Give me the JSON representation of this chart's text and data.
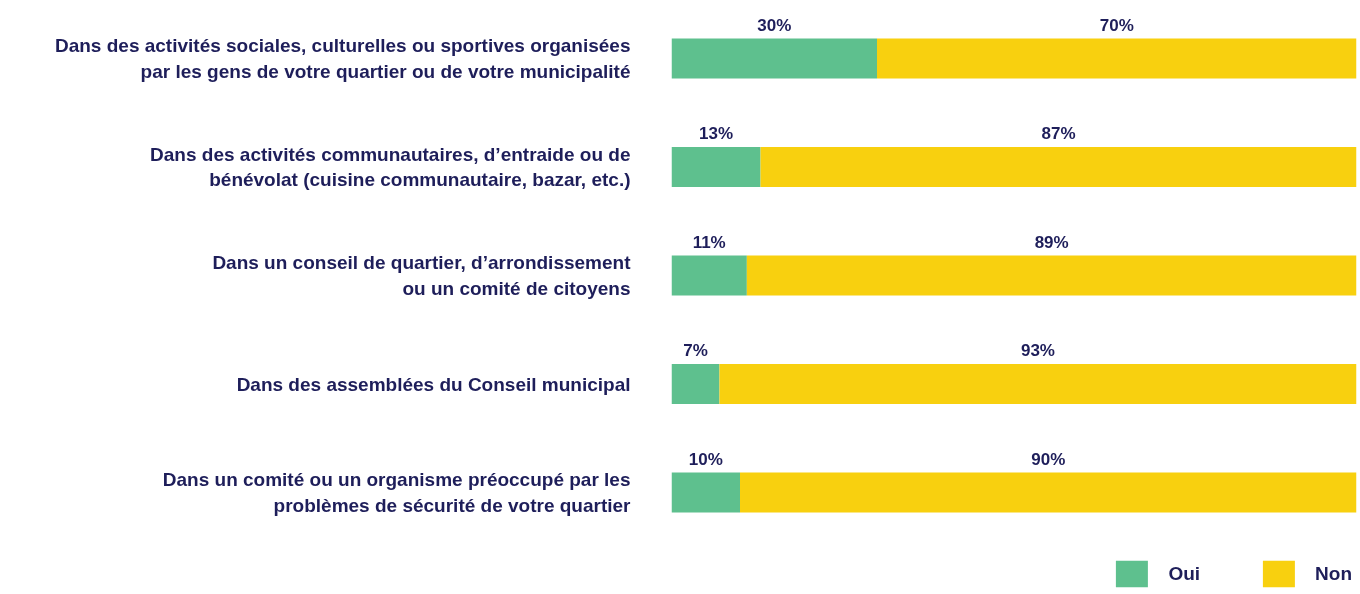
{
  "chart_data": {
    "type": "bar",
    "orientation": "horizontal",
    "stacked": true,
    "categories": [
      "Dans des activités sociales, culturelles ou sportives organisées\npar les gens de votre quartier ou de votre municipalité",
      "Dans des activités communautaires, d’entraide ou de\nbénévolat (cuisine communautaire, bazar, etc.)",
      "Dans un conseil de quartier, d’arrondissement\nou un comité de citoyens",
      "Dans des assemblées du Conseil municipal",
      "Dans un comité ou un organisme préoccupé par les\nproblèmes de sécurité de votre quartier"
    ],
    "series": [
      {
        "name": "Oui",
        "color": "#5ec08e",
        "values": [
          30,
          13,
          11,
          7,
          10
        ],
        "value_labels": [
          "30%",
          "13%",
          "11%",
          "7%",
          "10%"
        ]
      },
      {
        "name": "Non",
        "color": "#f8d00f",
        "values": [
          70,
          87,
          89,
          93,
          90
        ],
        "value_labels": [
          "70%",
          "87%",
          "89%",
          "93%",
          "90%"
        ]
      }
    ],
    "xlim": [
      0,
      100
    ],
    "tick_labels": "y",
    "legend": "bottom right"
  }
}
